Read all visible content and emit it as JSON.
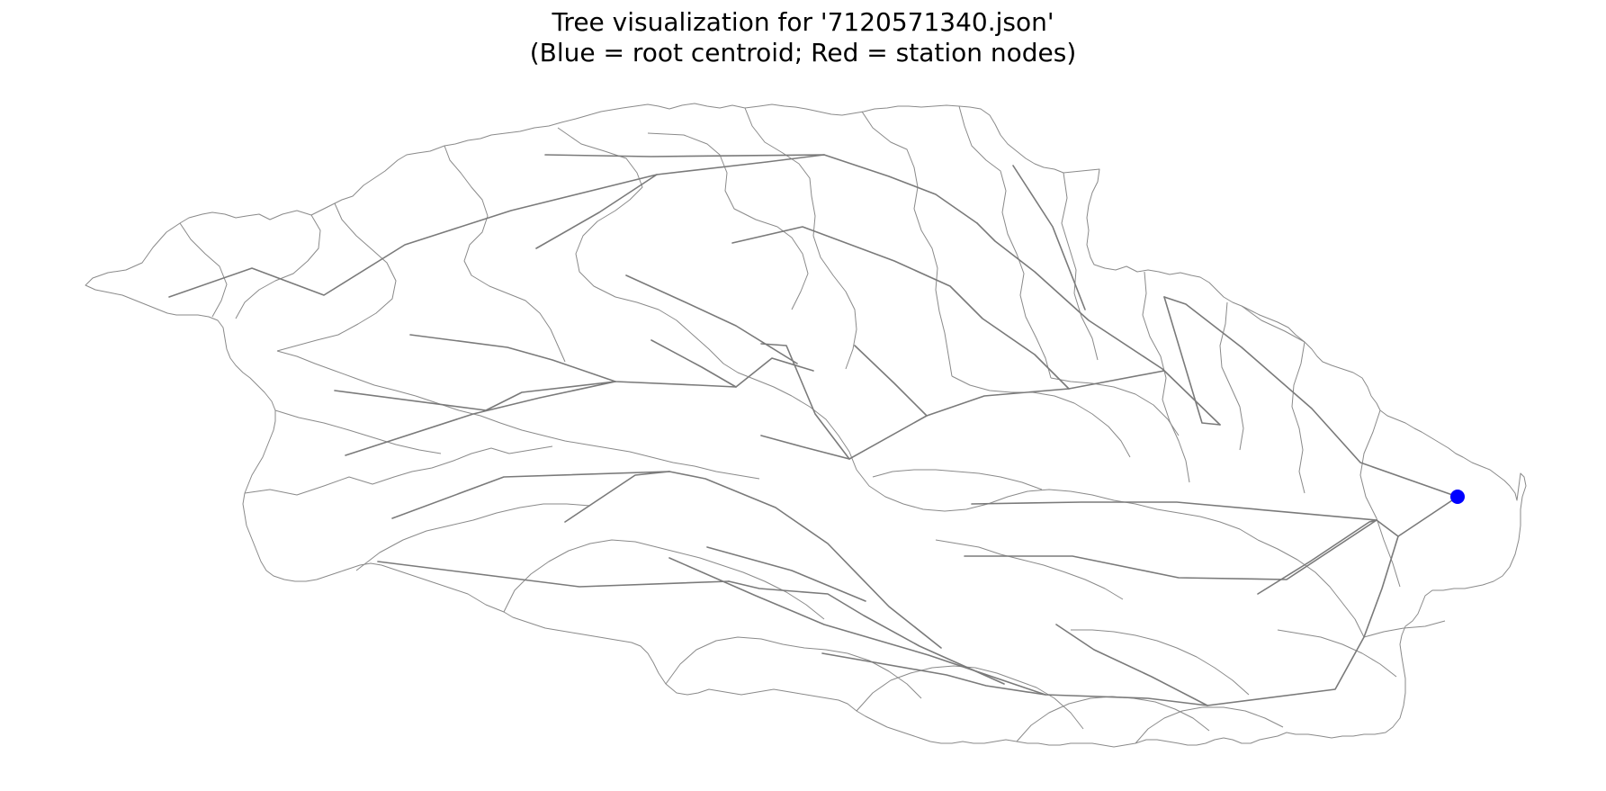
{
  "figure": {
    "title_line1": "Tree visualization for '7120571340.json'",
    "title_line2": "(Blue = root centroid; Red = station nodes)"
  },
  "colors": {
    "background": "#ffffff",
    "basin_outline": "#8a8a8a",
    "tree_edge": "#7a7a7a",
    "root_centroid": "#0000ff",
    "station_node": "#ff0000"
  },
  "legend_meaning": {
    "root": "root centroid",
    "station": "station nodes"
  }
}
